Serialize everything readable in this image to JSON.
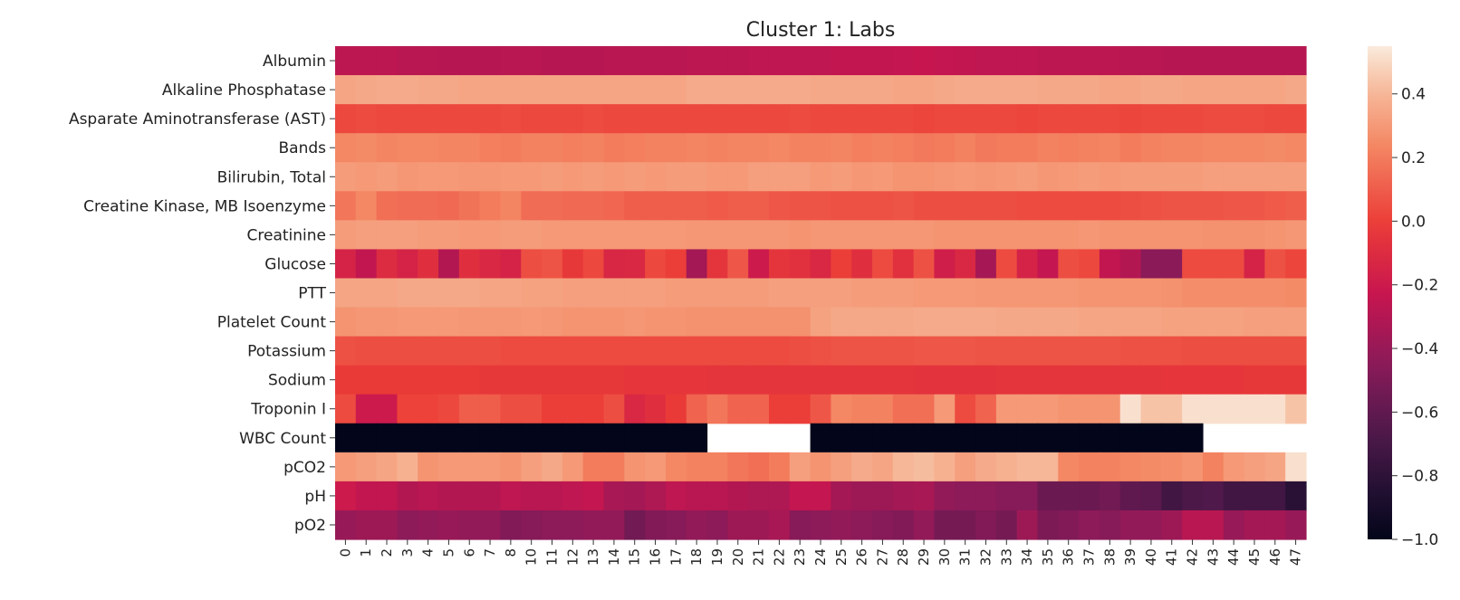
{
  "chart_data": {
    "type": "heatmap",
    "title": "Cluster 1: Labs",
    "xlabel": "",
    "ylabel": "",
    "rows": [
      "Albumin",
      "Alkaline Phosphatase",
      "Asparate Aminotransferase (AST)",
      "Bands",
      "Bilirubin, Total",
      "Creatine Kinase, MB Isoenzyme",
      "Creatinine",
      "Glucose",
      "PTT",
      "Platelet Count",
      "Potassium",
      "Sodium",
      "Troponin I",
      "WBC Count",
      "pCO2",
      "pH",
      "pO2"
    ],
    "columns": [
      "0",
      "1",
      "2",
      "3",
      "4",
      "5",
      "6",
      "7",
      "8",
      "10",
      "11",
      "12",
      "13",
      "14",
      "15",
      "16",
      "17",
      "18",
      "19",
      "20",
      "21",
      "22",
      "23",
      "24",
      "25",
      "26",
      "27",
      "28",
      "29",
      "30",
      "31",
      "32",
      "33",
      "34",
      "35",
      "36",
      "37",
      "38",
      "39",
      "40",
      "41",
      "42",
      "43",
      "44",
      "45",
      "46",
      "47"
    ],
    "colorbar": {
      "vmin": -1.0,
      "vmax": 0.55,
      "ticks": [
        {
          "value": -1.0,
          "label": "−1.0"
        },
        {
          "value": -0.8,
          "label": "−0.8"
        },
        {
          "value": -0.6,
          "label": "−0.6"
        },
        {
          "value": -0.4,
          "label": "−0.4"
        },
        {
          "value": -0.2,
          "label": "−0.2"
        },
        {
          "value": 0.0,
          "label": "0.0"
        },
        {
          "value": 0.2,
          "label": "0.2"
        },
        {
          "value": 0.4,
          "label": "0.4"
        }
      ],
      "colormap": "rocket"
    },
    "values": [
      [
        -0.27,
        -0.27,
        -0.27,
        -0.28,
        -0.28,
        -0.29,
        -0.29,
        -0.29,
        -0.28,
        -0.28,
        -0.29,
        -0.29,
        -0.29,
        -0.28,
        -0.28,
        -0.28,
        -0.28,
        -0.27,
        -0.27,
        -0.27,
        -0.26,
        -0.26,
        -0.26,
        -0.26,
        -0.25,
        -0.25,
        -0.25,
        -0.24,
        -0.23,
        -0.24,
        -0.25,
        -0.26,
        -0.26,
        -0.26,
        -0.27,
        -0.27,
        -0.27,
        -0.27,
        -0.28,
        -0.28,
        -0.29,
        -0.29,
        -0.29,
        -0.29,
        -0.29,
        -0.29,
        -0.29
      ],
      [
        0.34,
        0.35,
        0.36,
        0.36,
        0.35,
        0.35,
        0.34,
        0.34,
        0.34,
        0.34,
        0.34,
        0.34,
        0.34,
        0.34,
        0.34,
        0.34,
        0.34,
        0.36,
        0.36,
        0.36,
        0.36,
        0.36,
        0.36,
        0.35,
        0.35,
        0.35,
        0.35,
        0.34,
        0.34,
        0.35,
        0.36,
        0.36,
        0.36,
        0.36,
        0.35,
        0.35,
        0.35,
        0.34,
        0.34,
        0.35,
        0.35,
        0.34,
        0.34,
        0.34,
        0.34,
        0.34,
        0.35
      ],
      [
        0.03,
        0.04,
        0.03,
        0.03,
        0.03,
        0.03,
        0.03,
        0.03,
        0.04,
        0.03,
        0.03,
        0.03,
        0.04,
        0.03,
        0.03,
        0.03,
        0.03,
        0.03,
        0.03,
        0.03,
        0.03,
        0.03,
        0.04,
        0.03,
        0.03,
        0.03,
        0.03,
        0.03,
        0.02,
        0.03,
        0.03,
        0.03,
        0.03,
        0.02,
        0.03,
        0.03,
        0.03,
        0.03,
        0.02,
        0.03,
        0.03,
        0.03,
        0.04,
        0.04,
        0.04,
        0.03,
        0.03
      ],
      [
        0.24,
        0.25,
        0.23,
        0.24,
        0.24,
        0.23,
        0.23,
        0.21,
        0.2,
        0.22,
        0.22,
        0.21,
        0.22,
        0.2,
        0.21,
        0.22,
        0.22,
        0.23,
        0.22,
        0.23,
        0.23,
        0.24,
        0.22,
        0.22,
        0.23,
        0.21,
        0.22,
        0.21,
        0.19,
        0.2,
        0.22,
        0.19,
        0.2,
        0.2,
        0.22,
        0.21,
        0.22,
        0.23,
        0.2,
        0.22,
        0.23,
        0.23,
        0.24,
        0.24,
        0.24,
        0.25,
        0.24
      ],
      [
        0.31,
        0.3,
        0.31,
        0.29,
        0.3,
        0.3,
        0.29,
        0.29,
        0.3,
        0.3,
        0.31,
        0.3,
        0.31,
        0.3,
        0.31,
        0.3,
        0.31,
        0.31,
        0.3,
        0.3,
        0.32,
        0.32,
        0.32,
        0.3,
        0.31,
        0.29,
        0.3,
        0.28,
        0.28,
        0.29,
        0.3,
        0.29,
        0.3,
        0.31,
        0.29,
        0.3,
        0.31,
        0.3,
        0.31,
        0.31,
        0.31,
        0.31,
        0.32,
        0.32,
        0.32,
        0.32,
        0.32
      ],
      [
        0.18,
        0.24,
        0.16,
        0.15,
        0.15,
        0.14,
        0.17,
        0.2,
        0.23,
        0.15,
        0.15,
        0.14,
        0.14,
        0.13,
        0.1,
        0.1,
        0.1,
        0.1,
        0.09,
        0.1,
        0.1,
        0.08,
        0.07,
        0.07,
        0.06,
        0.06,
        0.06,
        0.07,
        0.05,
        0.05,
        0.05,
        0.05,
        0.05,
        0.04,
        0.04,
        0.04,
        0.04,
        0.04,
        0.05,
        0.06,
        0.07,
        0.07,
        0.07,
        0.08,
        0.08,
        0.09,
        0.1
      ],
      [
        0.31,
        0.32,
        0.32,
        0.32,
        0.31,
        0.31,
        0.3,
        0.3,
        0.31,
        0.31,
        0.3,
        0.3,
        0.3,
        0.3,
        0.3,
        0.3,
        0.3,
        0.29,
        0.29,
        0.29,
        0.29,
        0.29,
        0.28,
        0.29,
        0.29,
        0.29,
        0.29,
        0.29,
        0.29,
        0.28,
        0.28,
        0.28,
        0.28,
        0.28,
        0.28,
        0.28,
        0.29,
        0.28,
        0.28,
        0.28,
        0.28,
        0.28,
        0.27,
        0.27,
        0.27,
        0.28,
        0.29
      ],
      [
        -0.15,
        -0.25,
        -0.1,
        -0.15,
        -0.08,
        -0.3,
        -0.08,
        -0.12,
        -0.15,
        0.05,
        0.07,
        -0.03,
        0.03,
        -0.13,
        -0.12,
        0.03,
        0.0,
        -0.36,
        -0.05,
        0.08,
        -0.2,
        -0.05,
        -0.07,
        -0.12,
        0.0,
        -0.08,
        0.04,
        -0.07,
        0.06,
        -0.18,
        -0.12,
        -0.35,
        0.04,
        -0.15,
        -0.24,
        0.05,
        0.03,
        -0.25,
        -0.3,
        -0.45,
        -0.45,
        0.04,
        0.04,
        0.04,
        -0.15,
        0.06,
        0.02
      ],
      [
        0.34,
        0.34,
        0.34,
        0.35,
        0.35,
        0.35,
        0.35,
        0.34,
        0.34,
        0.33,
        0.33,
        0.32,
        0.32,
        0.32,
        0.32,
        0.32,
        0.31,
        0.31,
        0.31,
        0.31,
        0.31,
        0.32,
        0.32,
        0.32,
        0.32,
        0.31,
        0.31,
        0.31,
        0.3,
        0.3,
        0.3,
        0.29,
        0.29,
        0.29,
        0.29,
        0.29,
        0.28,
        0.28,
        0.28,
        0.28,
        0.27,
        0.26,
        0.26,
        0.26,
        0.26,
        0.26,
        0.25
      ],
      [
        0.28,
        0.29,
        0.29,
        0.3,
        0.3,
        0.3,
        0.29,
        0.29,
        0.29,
        0.3,
        0.29,
        0.28,
        0.28,
        0.28,
        0.29,
        0.28,
        0.28,
        0.27,
        0.27,
        0.27,
        0.27,
        0.27,
        0.27,
        0.33,
        0.35,
        0.35,
        0.35,
        0.35,
        0.36,
        0.36,
        0.36,
        0.36,
        0.35,
        0.35,
        0.35,
        0.35,
        0.34,
        0.34,
        0.34,
        0.34,
        0.33,
        0.33,
        0.33,
        0.33,
        0.32,
        0.32,
        0.32
      ],
      [
        0.06,
        0.05,
        0.05,
        0.05,
        0.05,
        0.05,
        0.05,
        0.05,
        0.04,
        0.04,
        0.04,
        0.04,
        0.04,
        0.04,
        0.04,
        0.04,
        0.04,
        0.04,
        0.04,
        0.04,
        0.04,
        0.04,
        0.05,
        0.06,
        0.07,
        0.07,
        0.07,
        0.07,
        0.08,
        0.08,
        0.08,
        0.07,
        0.07,
        0.07,
        0.07,
        0.07,
        0.07,
        0.07,
        0.06,
        0.06,
        0.06,
        0.05,
        0.05,
        0.05,
        0.05,
        0.05,
        0.05
      ],
      [
        -0.02,
        -0.02,
        -0.02,
        -0.02,
        -0.02,
        -0.02,
        -0.02,
        -0.03,
        -0.03,
        -0.03,
        -0.03,
        -0.03,
        -0.03,
        -0.03,
        -0.04,
        -0.04,
        -0.04,
        -0.04,
        -0.05,
        -0.05,
        -0.05,
        -0.05,
        -0.05,
        -0.05,
        -0.05,
        -0.05,
        -0.05,
        -0.05,
        -0.06,
        -0.06,
        -0.06,
        -0.06,
        -0.05,
        -0.05,
        -0.05,
        -0.05,
        -0.05,
        -0.05,
        -0.05,
        -0.05,
        -0.04,
        -0.04,
        -0.04,
        -0.04,
        -0.03,
        -0.03,
        -0.03
      ],
      [
        0.04,
        -0.2,
        -0.2,
        0.01,
        0.01,
        0.03,
        0.1,
        0.1,
        0.05,
        0.05,
        0.0,
        0.0,
        0.0,
        0.05,
        -0.12,
        -0.08,
        -0.02,
        0.12,
        0.18,
        0.12,
        0.12,
        0.0,
        0.0,
        0.08,
        0.24,
        0.22,
        0.22,
        0.16,
        0.16,
        0.3,
        0.04,
        0.12,
        0.3,
        0.3,
        0.3,
        0.28,
        0.28,
        0.28,
        0.52,
        0.44,
        0.44,
        0.52,
        0.52,
        0.52,
        0.52,
        0.52,
        0.44
      ],
      [
        -1.0,
        -1.0,
        -1.0,
        -1.0,
        -1.0,
        -1.0,
        -1.0,
        -1.0,
        -1.0,
        -1.0,
        -1.0,
        -1.0,
        -1.0,
        -1.0,
        -1.0,
        -1.0,
        -1.0,
        -1.0,
        null,
        null,
        null,
        null,
        null,
        -1.0,
        -1.0,
        -1.0,
        -1.0,
        -1.0,
        -1.0,
        -1.0,
        -1.0,
        -1.0,
        -1.0,
        -1.0,
        -1.0,
        -1.0,
        -1.0,
        -1.0,
        -1.0,
        -1.0,
        -1.0,
        -1.0,
        null,
        null,
        null,
        null,
        null
      ],
      [
        0.3,
        0.32,
        0.34,
        0.38,
        0.28,
        0.3,
        0.3,
        0.3,
        0.28,
        0.32,
        0.35,
        0.3,
        0.2,
        0.2,
        0.28,
        0.3,
        0.24,
        0.22,
        0.22,
        0.18,
        0.16,
        0.2,
        0.32,
        0.28,
        0.32,
        0.36,
        0.34,
        0.4,
        0.42,
        0.38,
        0.32,
        0.36,
        0.38,
        0.4,
        0.4,
        0.24,
        0.22,
        0.22,
        0.24,
        0.25,
        0.26,
        0.28,
        0.22,
        0.3,
        0.32,
        0.34,
        0.52
      ],
      [
        -0.2,
        -0.25,
        -0.25,
        -0.3,
        -0.28,
        -0.3,
        -0.3,
        -0.3,
        -0.26,
        -0.28,
        -0.28,
        -0.26,
        -0.24,
        -0.34,
        -0.36,
        -0.32,
        -0.26,
        -0.28,
        -0.28,
        -0.3,
        -0.32,
        -0.32,
        -0.24,
        -0.24,
        -0.36,
        -0.38,
        -0.38,
        -0.36,
        -0.34,
        -0.42,
        -0.44,
        -0.44,
        -0.46,
        -0.46,
        -0.56,
        -0.56,
        -0.56,
        -0.54,
        -0.6,
        -0.62,
        -0.72,
        -0.68,
        -0.66,
        -0.72,
        -0.72,
        -0.72,
        -0.82
      ],
      [
        -0.4,
        -0.38,
        -0.38,
        -0.44,
        -0.42,
        -0.4,
        -0.42,
        -0.42,
        -0.48,
        -0.46,
        -0.44,
        -0.44,
        -0.42,
        -0.42,
        -0.54,
        -0.48,
        -0.46,
        -0.42,
        -0.44,
        -0.38,
        -0.38,
        -0.34,
        -0.46,
        -0.44,
        -0.42,
        -0.44,
        -0.46,
        -0.48,
        -0.42,
        -0.52,
        -0.52,
        -0.48,
        -0.52,
        -0.38,
        -0.5,
        -0.48,
        -0.44,
        -0.46,
        -0.42,
        -0.42,
        -0.38,
        -0.28,
        -0.28,
        -0.4,
        -0.36,
        -0.36,
        -0.4
      ]
    ]
  }
}
